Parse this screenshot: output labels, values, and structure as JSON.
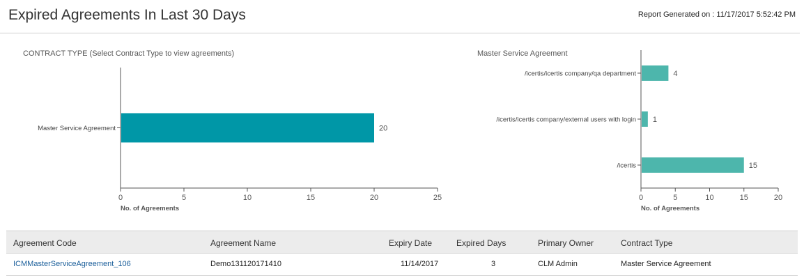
{
  "header": {
    "title": "Expired Agreements In Last 30 Days",
    "report_generated": "Report Generated on : 11/17/2017 5:52:42 PM"
  },
  "chart_data": [
    {
      "type": "bar",
      "orientation": "horizontal",
      "title": "CONTRACT TYPE (Select Contract Type to view agreements)",
      "categories": [
        "Master Service Agreement"
      ],
      "values": [
        20
      ],
      "xlabel": "No. of Agreements",
      "xlim": [
        0,
        25
      ],
      "xticks": [
        0,
        5,
        10,
        15,
        20,
        25
      ],
      "color": "#0097a7",
      "grid": false
    },
    {
      "type": "bar",
      "orientation": "horizontal",
      "title": "Master Service Agreement",
      "categories": [
        "/icertis/icertis company/qa department",
        "/icertis/icertis company/external users with login",
        "/icertis"
      ],
      "values": [
        4,
        1,
        15
      ],
      "xlabel": "No. of Agreements",
      "xlim": [
        0,
        20
      ],
      "xticks": [
        0,
        5,
        10,
        15,
        20
      ],
      "color": "#4db6ac",
      "grid": false
    }
  ],
  "table": {
    "columns": [
      "Agreement Code",
      "Agreement Name",
      "Expiry Date",
      "Expired Days",
      "Primary Owner",
      "Contract Type"
    ],
    "rows": [
      {
        "code": "ICMMasterServiceAgreement_106",
        "name": "Demo131120171410",
        "expiry": "11/14/2017",
        "days": "3",
        "owner": "CLM Admin",
        "type": "Master Service Agreement"
      }
    ]
  }
}
